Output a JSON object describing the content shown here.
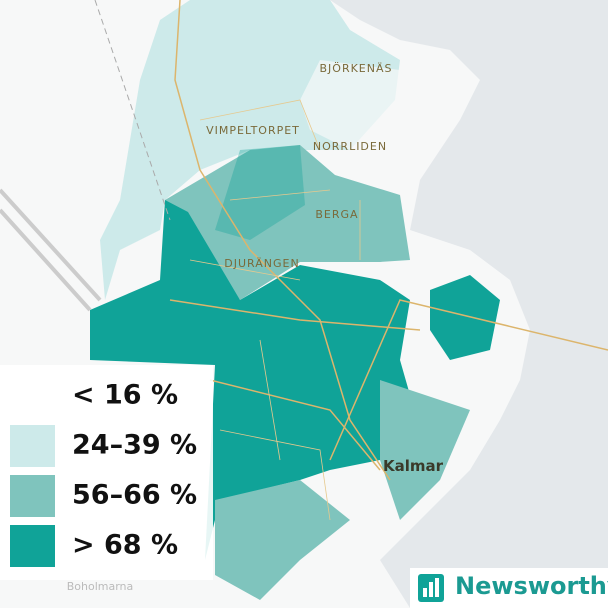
{
  "place_labels": [
    "BJÖRKENÄS",
    "VIMPELTORPET",
    "NORRLIDEN",
    "BERGA",
    "DJURÄNGEN",
    "Kalmar",
    "Boholmarna"
  ],
  "legend": [
    {
      "label": "< 16 %",
      "color": "#ffffff"
    },
    {
      "label": "24–39 %",
      "color": "#cdeaea"
    },
    {
      "label": "56–66 %",
      "color": "#7fc4bd"
    },
    {
      "label": "> 68 %",
      "color": "#10a398"
    }
  ],
  "brand": "Newsworthy"
}
